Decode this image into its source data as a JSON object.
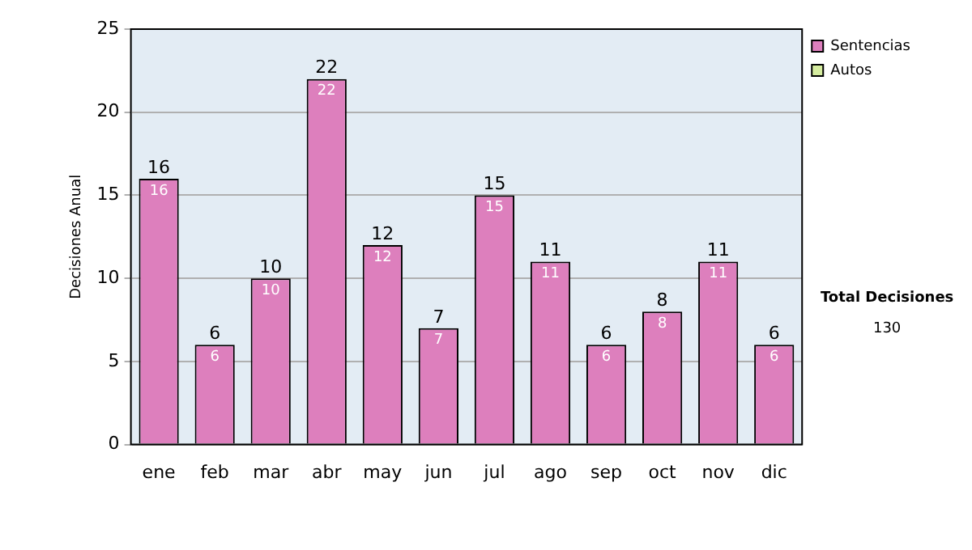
{
  "chart_data": {
    "type": "bar",
    "stacked": true,
    "ylabel": "Decisiones Anual",
    "categories": [
      "ene",
      "feb",
      "mar",
      "abr",
      "may",
      "jun",
      "jul",
      "ago",
      "sep",
      "oct",
      "nov",
      "dic"
    ],
    "series": [
      {
        "name": "Sentencias",
        "color": "#dd7fbd",
        "values": [
          16,
          6,
          10,
          22,
          12,
          7,
          15,
          11,
          6,
          8,
          11,
          6
        ],
        "value_labels": [
          "16",
          "6",
          "10",
          "22",
          "12",
          "7",
          "15",
          "11",
          "6",
          "8",
          "11",
          "6"
        ]
      },
      {
        "name": "Autos",
        "color": "#d6eda0",
        "values": [
          0,
          0,
          0,
          0,
          0,
          0,
          0,
          0,
          0,
          0,
          0,
          0
        ]
      }
    ],
    "ylim": [
      0,
      25
    ],
    "yticks": [
      0,
      5,
      10,
      15,
      20,
      25
    ],
    "grid": "y",
    "legend": "right",
    "totals": [
      "16",
      "6",
      "10",
      "22",
      "12",
      "7",
      "15",
      "11",
      "6",
      "8",
      "11",
      "6"
    ],
    "annotations": [
      "Total Decisiones",
      "130"
    ]
  }
}
